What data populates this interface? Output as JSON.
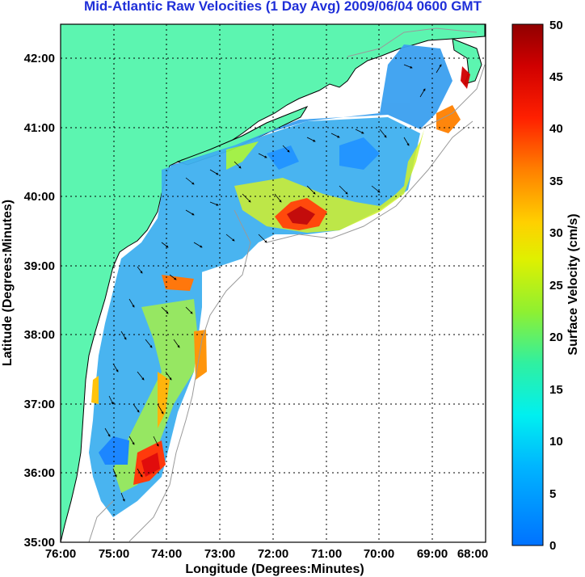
{
  "title": "Mid-Atlantic Raw Velocities (1 Day Avg) 2009/06/04 0600 GMT",
  "chart_data": {
    "type": "heatmap",
    "xlabel": "Longitude (Degrees:Minutes)",
    "ylabel": "Latitude (Degrees:Minutes)",
    "x_ticks": [
      "76:00",
      "75:00",
      "74:00",
      "73:00",
      "72:00",
      "71:00",
      "70:00",
      "69:00",
      "68:00"
    ],
    "y_ticks": [
      "42:00",
      "41:00",
      "40:00",
      "39:00",
      "38:00",
      "37:00",
      "36:00",
      "35:00"
    ],
    "xlim": [
      -76,
      -68
    ],
    "ylim": [
      35,
      42.5
    ],
    "grid": true,
    "colorbar": {
      "label": "Surface Velocity (cm/s)",
      "range": [
        0,
        50
      ],
      "ticks": [
        "0",
        "5",
        "10",
        "15",
        "20",
        "25",
        "30",
        "35",
        "40",
        "45",
        "50"
      ]
    },
    "colors": {
      "land": "#5cf5b0",
      "ocean": "#ffffff",
      "coast": "#000000",
      "title": "#1f2fd8",
      "bathymetry": "#9a9a9a"
    }
  }
}
